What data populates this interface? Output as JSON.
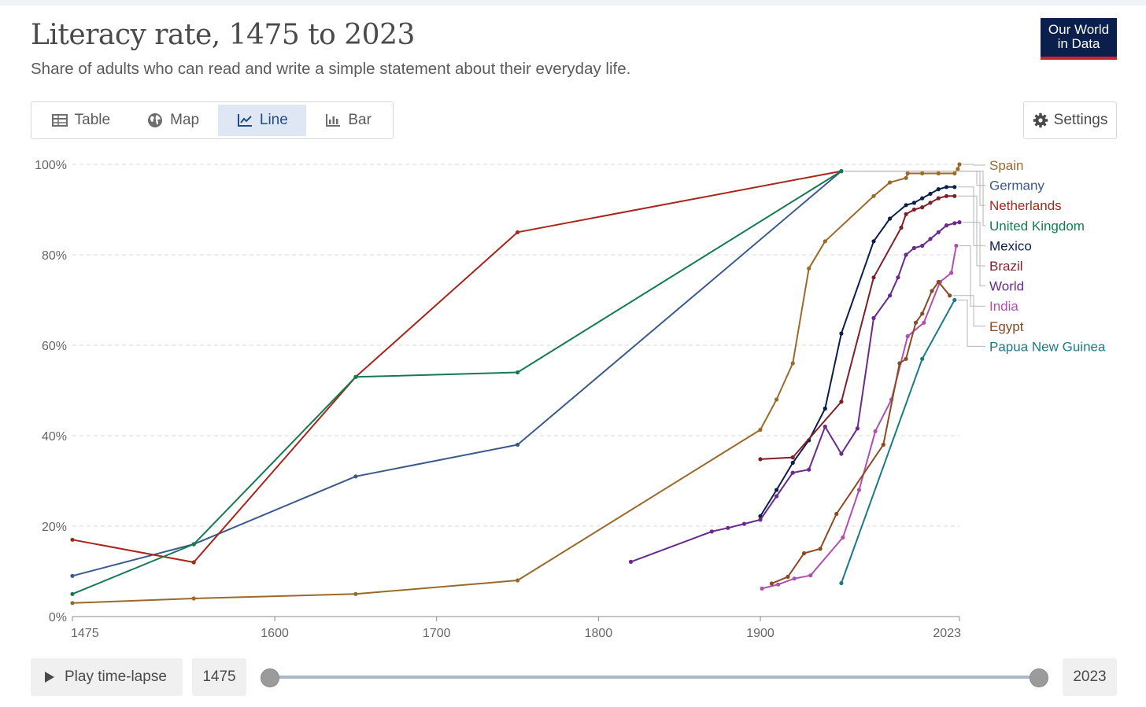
{
  "header": {
    "title": "Literacy rate, 1475 to 2023",
    "subtitle": "Share of adults who can read and write a simple statement about their everyday life."
  },
  "logo": {
    "line1": "Our World",
    "line2": "in Data",
    "bg": "#0b1f4c",
    "accent": "#d32030"
  },
  "tabs": [
    {
      "label": "Table",
      "icon": "table-icon"
    },
    {
      "label": "Map",
      "icon": "globe-icon"
    },
    {
      "label": "Line",
      "icon": "line-chart-icon",
      "active": true
    },
    {
      "label": "Bar",
      "icon": "bar-chart-icon"
    }
  ],
  "settings": {
    "label": "Settings",
    "icon": "gear-icon"
  },
  "timeline": {
    "play_label": "Play time-lapse",
    "start": "1475",
    "end": "2023"
  },
  "chart_data": {
    "type": "line",
    "title": "Literacy rate, 1475 to 2023",
    "xlim": [
      1475,
      2023
    ],
    "ylim": [
      0,
      100
    ],
    "x_ticks": [
      "1475",
      "1600",
      "1700",
      "1800",
      "1900",
      "2023"
    ],
    "y_ticks": [
      "0%",
      "20%",
      "40%",
      "60%",
      "80%",
      "100%"
    ],
    "grid": "horizontal dashed",
    "legend": "right, labels at line ends",
    "series": [
      {
        "name": "Spain",
        "color": "#9a6a2a",
        "points": [
          [
            1475,
            3
          ],
          [
            1550,
            4
          ],
          [
            1650,
            5
          ],
          [
            1750,
            8
          ],
          [
            1900,
            41.3
          ],
          [
            1910,
            48
          ],
          [
            1920,
            56
          ],
          [
            1930,
            77
          ],
          [
            1940,
            83
          ],
          [
            1970,
            93
          ],
          [
            1980,
            96
          ],
          [
            1990,
            97
          ],
          [
            1991,
            98
          ],
          [
            2000,
            98
          ],
          [
            2010,
            98
          ],
          [
            2020,
            98
          ],
          [
            2022,
            99
          ],
          [
            2023,
            100
          ]
        ]
      },
      {
        "name": "Germany",
        "color": "#3b5a8c",
        "points": [
          [
            1475,
            9
          ],
          [
            1550,
            16
          ],
          [
            1650,
            31
          ],
          [
            1750,
            38
          ],
          [
            1950,
            98.5
          ]
        ]
      },
      {
        "name": "Netherlands",
        "color": "#a8261b",
        "points": [
          [
            1475,
            17
          ],
          [
            1550,
            12
          ],
          [
            1650,
            53
          ],
          [
            1750,
            85
          ],
          [
            1950,
            98.5
          ]
        ]
      },
      {
        "name": "United Kingdom",
        "color": "#157a52",
        "points": [
          [
            1475,
            5
          ],
          [
            1550,
            16
          ],
          [
            1650,
            53
          ],
          [
            1750,
            54
          ],
          [
            1950,
            98.5
          ]
        ]
      },
      {
        "name": "Mexico",
        "color": "#0b1f4c",
        "points": [
          [
            1900,
            22.2
          ],
          [
            1910,
            28
          ],
          [
            1920,
            34
          ],
          [
            1930,
            39
          ],
          [
            1940,
            46
          ],
          [
            1950,
            62.6
          ],
          [
            1970,
            83
          ],
          [
            1980,
            88
          ],
          [
            1990,
            91
          ],
          [
            1995,
            91.5
          ],
          [
            2000,
            92.5
          ],
          [
            2005,
            93.5
          ],
          [
            2010,
            94.5
          ],
          [
            2015,
            95
          ],
          [
            2020,
            95
          ]
        ]
      },
      {
        "name": "Brazil",
        "color": "#7f1f2a",
        "points": [
          [
            1900,
            34.8
          ],
          [
            1920,
            35.2
          ],
          [
            1950,
            47.5
          ],
          [
            1970,
            75
          ],
          [
            1987,
            86
          ],
          [
            1990,
            89
          ],
          [
            1995,
            90
          ],
          [
            2000,
            90.5
          ],
          [
            2005,
            91.5
          ],
          [
            2010,
            92.5
          ],
          [
            2015,
            93
          ],
          [
            2020,
            93
          ]
        ]
      },
      {
        "name": "World",
        "color": "#6a2a8c",
        "points": [
          [
            1820,
            12.1
          ],
          [
            1870,
            18.8
          ],
          [
            1880,
            19.6
          ],
          [
            1890,
            20.5
          ],
          [
            1900,
            21.4
          ],
          [
            1910,
            26.6
          ],
          [
            1920,
            31.8
          ],
          [
            1930,
            32.5
          ],
          [
            1940,
            42
          ],
          [
            1950,
            36
          ],
          [
            1960,
            41.6
          ],
          [
            1970,
            66
          ],
          [
            1980,
            71
          ],
          [
            1985,
            75
          ],
          [
            1990,
            80
          ],
          [
            1995,
            81.5
          ],
          [
            2000,
            82
          ],
          [
            2005,
            83.5
          ],
          [
            2010,
            85
          ],
          [
            2015,
            86.5
          ],
          [
            2020,
            87
          ],
          [
            2023,
            87.2
          ]
        ]
      },
      {
        "name": "India",
        "color": "#b04fb0",
        "points": [
          [
            1901,
            6.2
          ],
          [
            1911,
            7.1
          ],
          [
            1921,
            8.4
          ],
          [
            1931,
            9.1
          ],
          [
            1951,
            17.5
          ],
          [
            1961,
            28
          ],
          [
            1971,
            41
          ],
          [
            1981,
            48
          ],
          [
            1991,
            62
          ],
          [
            2001,
            65
          ],
          [
            2011,
            74
          ],
          [
            2018,
            76
          ],
          [
            2021,
            82
          ]
        ]
      },
      {
        "name": "Egypt",
        "color": "#8a4a22",
        "points": [
          [
            1907,
            7.3
          ],
          [
            1917,
            8.8
          ],
          [
            1927,
            14
          ],
          [
            1937,
            15
          ],
          [
            1947,
            22.7
          ],
          [
            1976,
            38
          ],
          [
            1986,
            56
          ],
          [
            1990,
            57
          ],
          [
            1996,
            65
          ],
          [
            2000,
            67
          ],
          [
            2006,
            72
          ],
          [
            2010,
            74
          ],
          [
            2017,
            71
          ]
        ]
      },
      {
        "name": "Papua New Guinea",
        "color": "#1a7a85",
        "points": [
          [
            1950,
            7.4
          ],
          [
            2000,
            57
          ],
          [
            2020,
            70
          ]
        ]
      }
    ]
  }
}
